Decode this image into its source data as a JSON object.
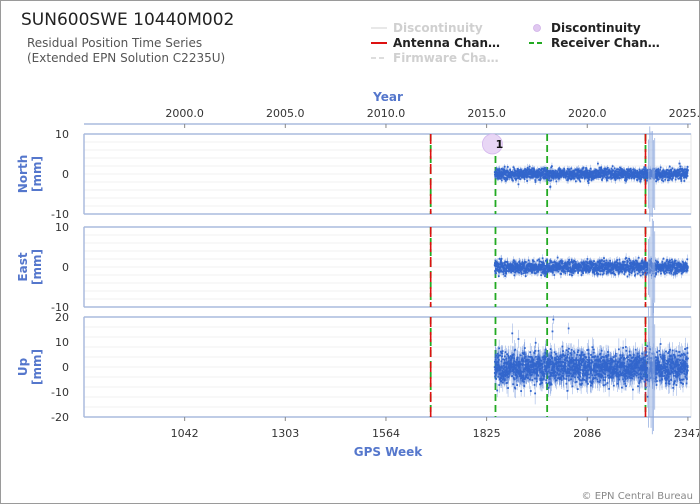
{
  "header": {
    "title": "SUN600SWE 10440M002",
    "subtitle_line1": "Residual Position Time Series",
    "subtitle_line2": "(Extended EPN Solution C2235U)"
  },
  "legend": [
    {
      "label": "Discontinuity",
      "style": "line",
      "color": "#e8e8e8",
      "faded": true
    },
    {
      "label": "Discontinuity",
      "style": "circle",
      "color": "#e0c8f0",
      "faded": false
    },
    {
      "label": "Antenna Chan…",
      "style": "line",
      "color": "#dd1111",
      "faded": false
    },
    {
      "label": "Receiver Chan…",
      "style": "dash",
      "color": "#22aa22",
      "faded": false
    },
    {
      "label": "Firmware Cha…",
      "style": "dash",
      "color": "#dddddd",
      "faded": true
    }
  ],
  "chart_data": {
    "type": "scatter",
    "x_top": {
      "label": "Year",
      "ticks": [
        "2000.0",
        "2005.0",
        "2010.0",
        "2015.0",
        "2020.0",
        "2025.0"
      ],
      "tick_values": [
        2000.0,
        2005.0,
        2010.0,
        2015.0,
        2020.0,
        2025.0
      ]
    },
    "x_bottom": {
      "label": "GPS Week",
      "ticks": [
        "1042",
        "1303",
        "1564",
        "1825",
        "2086",
        "2347"
      ],
      "tick_values": [
        1042,
        1303,
        1564,
        1825,
        2086,
        2347
      ],
      "range": [
        781,
        2355
      ]
    },
    "data_range_weeks": [
      1846,
      2347
    ],
    "panels": [
      {
        "name": "North",
        "ylabel": "North\n[mm]",
        "ylabel_lines": [
          "North",
          "[mm]"
        ],
        "ylim": [
          -10,
          10
        ],
        "ticks": [
          "10",
          "0",
          "-10"
        ],
        "tick_values": [
          10,
          0,
          -10
        ],
        "noise_sd": 1.0
      },
      {
        "name": "East",
        "ylabel": "East\n[mm]",
        "ylabel_lines": [
          "East",
          "[mm]"
        ],
        "ylim": [
          -10,
          10
        ],
        "ticks": [
          "10",
          "0",
          "-10"
        ],
        "tick_values": [
          10,
          0,
          -10
        ],
        "noise_sd": 1.2
      },
      {
        "name": "Up",
        "ylabel": "Up\n[mm]",
        "ylabel_lines": [
          "Up",
          "[mm]"
        ],
        "ylim": [
          -20,
          20
        ],
        "ticks": [
          "20",
          "10",
          "0",
          "-10",
          "-20"
        ],
        "tick_values": [
          20,
          10,
          0,
          -10,
          -20
        ],
        "noise_sd": 4.5
      }
    ],
    "antenna_changes_week": [
      1680,
      2237
    ],
    "receiver_changes_week": [
      1680,
      1848,
      1982,
      2237
    ],
    "discontinuities": [
      {
        "week": 1840,
        "label": "1"
      }
    ],
    "colors": {
      "points": "#3366cc",
      "antenna": "#dd1111",
      "receiver": "#22aa22",
      "disc": "#e8d6f5",
      "grid": "#dddddd",
      "axis": "#aabbdd"
    }
  },
  "credit": "© EPN Central Bureau"
}
